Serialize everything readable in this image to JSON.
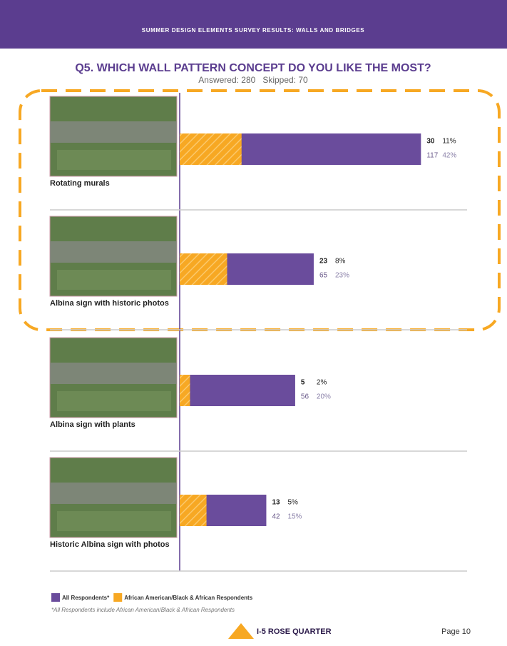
{
  "header": {
    "banner": "SUMMER DESIGN ELEMENTS SURVEY RESULTS: WALLS AND BRIDGES"
  },
  "chart_data": {
    "type": "bar",
    "orientation": "horizontal",
    "overlap": true,
    "title": "Q5. WHICH WALL PATTERN CONCEPT DO YOU LIKE THE MOST?",
    "subtitle": "Answered: 280   Skipped: 70",
    "categories": [
      "Rotating murals",
      "Albina sign with historic photos",
      "Albina sign with plants",
      "Historic Albina sign with photos"
    ],
    "series": [
      {
        "name": "All Respondents*",
        "color": "#6a4c9c",
        "values": [
          117,
          65,
          56,
          42
        ],
        "percent_labels": [
          "42%",
          "23%",
          "20%",
          "15%"
        ]
      },
      {
        "name": "African American/Black & African Respondents",
        "color": "#f7a823",
        "values": [
          30,
          23,
          5,
          13
        ],
        "percent_labels": [
          "11%",
          "8%",
          "2%",
          "5%"
        ]
      }
    ],
    "xlim": [
      0,
      120
    ],
    "footnote": "*All Respondents include African American/Black & African Respondents"
  },
  "footer": {
    "logo": "I-5 ROSE QUARTER",
    "page": "Page 10"
  }
}
